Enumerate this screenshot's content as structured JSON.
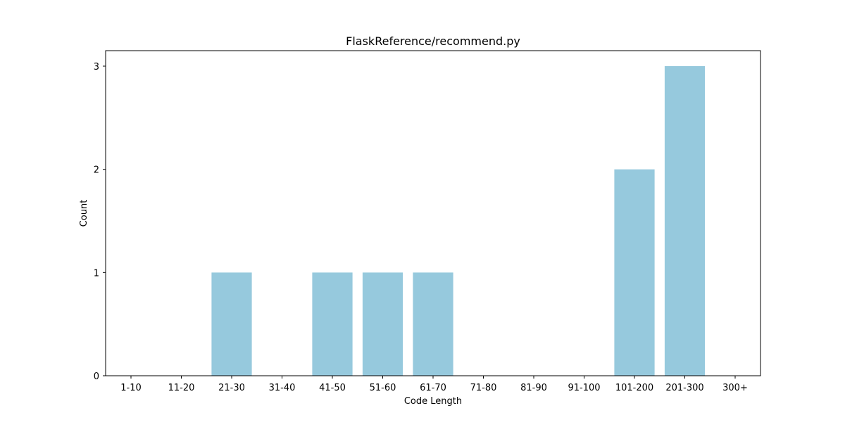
{
  "chart_data": {
    "type": "bar",
    "title": "FlaskReference/recommend.py",
    "xlabel": "Code Length",
    "ylabel": "Count",
    "categories": [
      "1-10",
      "11-20",
      "21-30",
      "31-40",
      "41-50",
      "51-60",
      "61-70",
      "71-80",
      "81-90",
      "91-100",
      "101-200",
      "201-300",
      "300+"
    ],
    "values": [
      0,
      0,
      1,
      0,
      1,
      1,
      1,
      0,
      0,
      0,
      2,
      3,
      0
    ],
    "ylim": [
      0,
      3.15
    ],
    "yticks": [
      0,
      1,
      2,
      3
    ],
    "bar_color": "#96c9dd",
    "grid": false,
    "legend": "none"
  }
}
